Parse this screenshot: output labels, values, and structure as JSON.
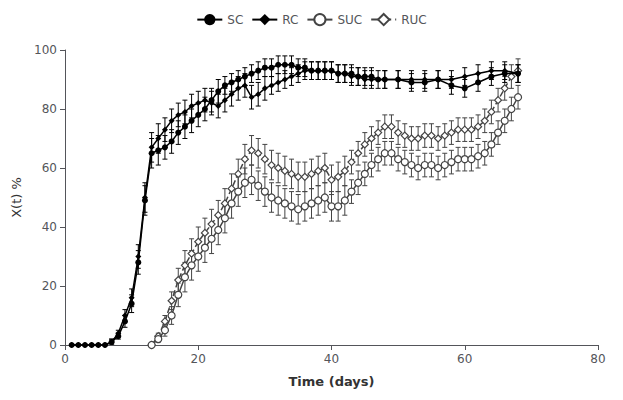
{
  "chart_data": {
    "type": "line",
    "xlabel": "Time (days)",
    "ylabel": "X(t) %",
    "xlim": [
      0,
      80
    ],
    "ylim": [
      0,
      100
    ],
    "xticks": [
      0,
      20,
      40,
      60,
      80
    ],
    "yticks": [
      0,
      20,
      40,
      60,
      80,
      100
    ],
    "grid": false,
    "legend": "top",
    "series": [
      {
        "name": "SC",
        "color": "#000000",
        "marker": "circle",
        "line_style": "solid",
        "x": [
          1,
          2,
          3,
          4,
          5,
          6,
          7,
          8,
          9,
          10,
          11,
          12,
          13,
          14,
          15,
          16,
          17,
          18,
          19,
          20,
          21,
          22,
          23,
          24,
          25,
          26,
          27,
          28,
          29,
          30,
          31,
          32,
          33,
          34,
          35,
          36,
          37,
          38,
          39,
          40,
          41,
          42,
          43,
          44,
          45,
          46,
          47,
          48,
          50,
          52,
          54,
          56,
          58,
          60,
          62,
          64,
          66,
          68
        ],
        "values": [
          0,
          0,
          0,
          0,
          0,
          0,
          1,
          3,
          8,
          14,
          28,
          49,
          65,
          66,
          67,
          69,
          72,
          74,
          76,
          78,
          80,
          83,
          86,
          88,
          89,
          90,
          91,
          92,
          93,
          94,
          94,
          95,
          95,
          95,
          94,
          94,
          93,
          93,
          93,
          93,
          92,
          92,
          92,
          91,
          91,
          91,
          90,
          90,
          90,
          89,
          89,
          90,
          88,
          87,
          89,
          91,
          92,
          92
        ],
        "yerr": [
          0,
          0,
          0,
          0,
          0,
          0,
          1,
          1,
          2,
          3,
          4,
          5,
          5,
          5,
          4,
          4,
          4,
          4,
          4,
          4,
          4,
          4,
          4,
          3,
          3,
          3,
          3,
          3,
          3,
          3,
          3,
          3,
          3,
          3,
          3,
          3,
          3,
          3,
          3,
          3,
          3,
          3,
          3,
          3,
          3,
          3,
          3,
          3,
          3,
          3,
          3,
          3,
          3,
          3,
          3,
          3,
          3,
          3
        ]
      },
      {
        "name": "RC",
        "color": "#000000",
        "marker": "diamond",
        "line_style": "solid",
        "x": [
          1,
          2,
          3,
          4,
          5,
          6,
          7,
          8,
          9,
          10,
          11,
          12,
          13,
          14,
          15,
          16,
          17,
          18,
          19,
          20,
          21,
          22,
          23,
          24,
          25,
          26,
          27,
          28,
          29,
          30,
          31,
          32,
          33,
          34,
          35,
          36,
          37,
          38,
          39,
          40,
          41,
          42,
          43,
          44,
          45,
          46,
          48,
          50,
          52,
          54,
          56,
          58,
          60,
          62,
          64,
          66,
          68
        ],
        "values": [
          0,
          0,
          0,
          0,
          0,
          0,
          1,
          4,
          10,
          16,
          30,
          50,
          67,
          70,
          73,
          76,
          78,
          79,
          81,
          82,
          83,
          82,
          81,
          83,
          85,
          87,
          88,
          84,
          85,
          87,
          88,
          89,
          90,
          91,
          92,
          93,
          93,
          93,
          93,
          93,
          92,
          92,
          91,
          91,
          90,
          90,
          90,
          90,
          90,
          90,
          90,
          90,
          91,
          92,
          93,
          93,
          92
        ],
        "yerr": [
          0,
          0,
          0,
          0,
          0,
          0,
          1,
          1,
          2,
          3,
          4,
          5,
          5,
          5,
          4,
          4,
          4,
          4,
          4,
          4,
          4,
          4,
          4,
          4,
          4,
          4,
          4,
          4,
          4,
          4,
          3,
          3,
          3,
          3,
          3,
          3,
          3,
          3,
          3,
          3,
          3,
          3,
          3,
          3,
          3,
          3,
          3,
          3,
          3,
          3,
          3,
          3,
          3,
          3,
          3,
          3,
          3
        ]
      },
      {
        "name": "SUC",
        "color": "#444444",
        "marker": "open_circle",
        "line_style": "solid",
        "x": [
          13,
          14,
          15,
          16,
          17,
          18,
          19,
          20,
          21,
          22,
          23,
          24,
          25,
          26,
          27,
          28,
          29,
          30,
          31,
          32,
          33,
          34,
          35,
          36,
          37,
          38,
          39,
          40,
          41,
          42,
          43,
          44,
          45,
          46,
          47,
          48,
          49,
          50,
          51,
          52,
          53,
          54,
          55,
          56,
          57,
          58,
          59,
          60,
          61,
          62,
          63,
          64,
          65,
          66,
          67,
          68
        ],
        "values": [
          0,
          2,
          5,
          10,
          17,
          23,
          27,
          30,
          33,
          36,
          39,
          43,
          48,
          52,
          55,
          56,
          54,
          52,
          50,
          49,
          48,
          47,
          46,
          47,
          48,
          49,
          50,
          47,
          47,
          49,
          52,
          55,
          58,
          61,
          63,
          65,
          65,
          63,
          62,
          61,
          60,
          61,
          61,
          60,
          61,
          62,
          63,
          63,
          63,
          64,
          65,
          68,
          72,
          76,
          80,
          84
        ],
        "yerr": [
          0,
          1,
          2,
          3,
          4,
          5,
          5,
          5,
          5,
          5,
          5,
          5,
          5,
          5,
          5,
          5,
          5,
          5,
          5,
          5,
          5,
          5,
          5,
          5,
          5,
          5,
          5,
          5,
          5,
          5,
          4,
          4,
          4,
          4,
          4,
          4,
          4,
          4,
          4,
          4,
          4,
          4,
          4,
          4,
          4,
          4,
          4,
          4,
          4,
          4,
          4,
          4,
          4,
          4,
          4,
          4
        ]
      },
      {
        "name": "RUC",
        "color": "#444444",
        "marker": "open_diamond",
        "line_style": "dashed",
        "x": [
          13,
          14,
          15,
          16,
          17,
          18,
          19,
          20,
          21,
          22,
          23,
          24,
          25,
          26,
          27,
          28,
          29,
          30,
          31,
          32,
          33,
          34,
          35,
          36,
          37,
          38,
          39,
          40,
          41,
          42,
          43,
          44,
          45,
          46,
          47,
          48,
          49,
          50,
          51,
          52,
          53,
          54,
          55,
          56,
          57,
          58,
          59,
          60,
          61,
          62,
          63,
          64,
          65,
          66,
          67,
          68
        ],
        "values": [
          0,
          3,
          8,
          15,
          22,
          27,
          31,
          35,
          38,
          41,
          44,
          48,
          53,
          58,
          63,
          66,
          65,
          63,
          61,
          60,
          59,
          58,
          57,
          57,
          58,
          59,
          60,
          56,
          57,
          59,
          62,
          65,
          68,
          70,
          72,
          74,
          74,
          72,
          71,
          70,
          70,
          71,
          71,
          70,
          71,
          72,
          73,
          73,
          73,
          74,
          76,
          79,
          83,
          87,
          91,
          93
        ],
        "yerr": [
          0,
          1,
          2,
          3,
          4,
          5,
          5,
          5,
          5,
          5,
          5,
          5,
          5,
          5,
          5,
          5,
          5,
          5,
          5,
          5,
          5,
          5,
          5,
          5,
          5,
          5,
          5,
          5,
          5,
          5,
          4,
          4,
          4,
          4,
          4,
          4,
          4,
          4,
          4,
          4,
          4,
          4,
          4,
          4,
          4,
          4,
          4,
          4,
          4,
          4,
          4,
          4,
          4,
          4,
          4,
          4
        ]
      }
    ]
  }
}
